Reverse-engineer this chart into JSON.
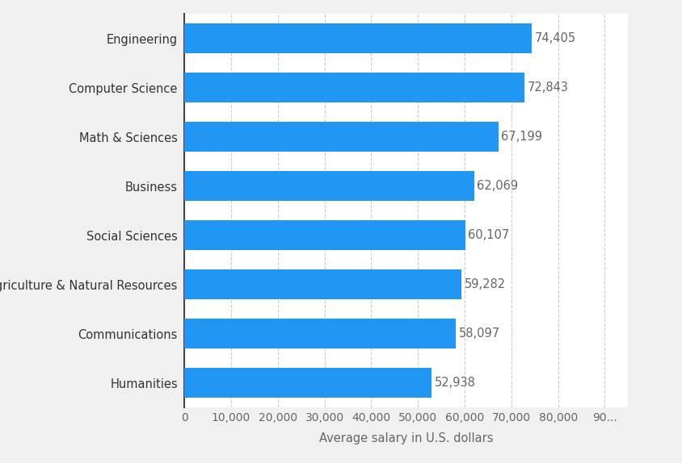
{
  "categories": [
    "Humanities",
    "Communications",
    "Agriculture & Natural Resources",
    "Social Sciences",
    "Business",
    "Math & Sciences",
    "Computer Science",
    "Engineering"
  ],
  "values": [
    52938,
    58097,
    59282,
    60107,
    62069,
    67199,
    72843,
    74405
  ],
  "bar_color": "#2196F3",
  "background_color": "#f0f0f0",
  "plot_background_color": "#ffffff",
  "xlabel": "Average salary in U.S. dollars",
  "xlim": [
    0,
    95000
  ],
  "xticks": [
    0,
    10000,
    20000,
    30000,
    40000,
    50000,
    60000,
    70000,
    80000,
    90000
  ],
  "xtick_labels": [
    "0",
    "10,000",
    "20,000",
    "30,000",
    "40,000",
    "50,000",
    "60,000",
    "70,000",
    "80,000",
    "90..."
  ],
  "bar_height": 0.6,
  "label_fontsize": 10.5,
  "xlabel_fontsize": 10.5,
  "tick_label_fontsize": 10,
  "value_label_color": "#666666",
  "ytick_color": "#333333",
  "grid_color": "#cccccc",
  "spine_color": "#444444"
}
